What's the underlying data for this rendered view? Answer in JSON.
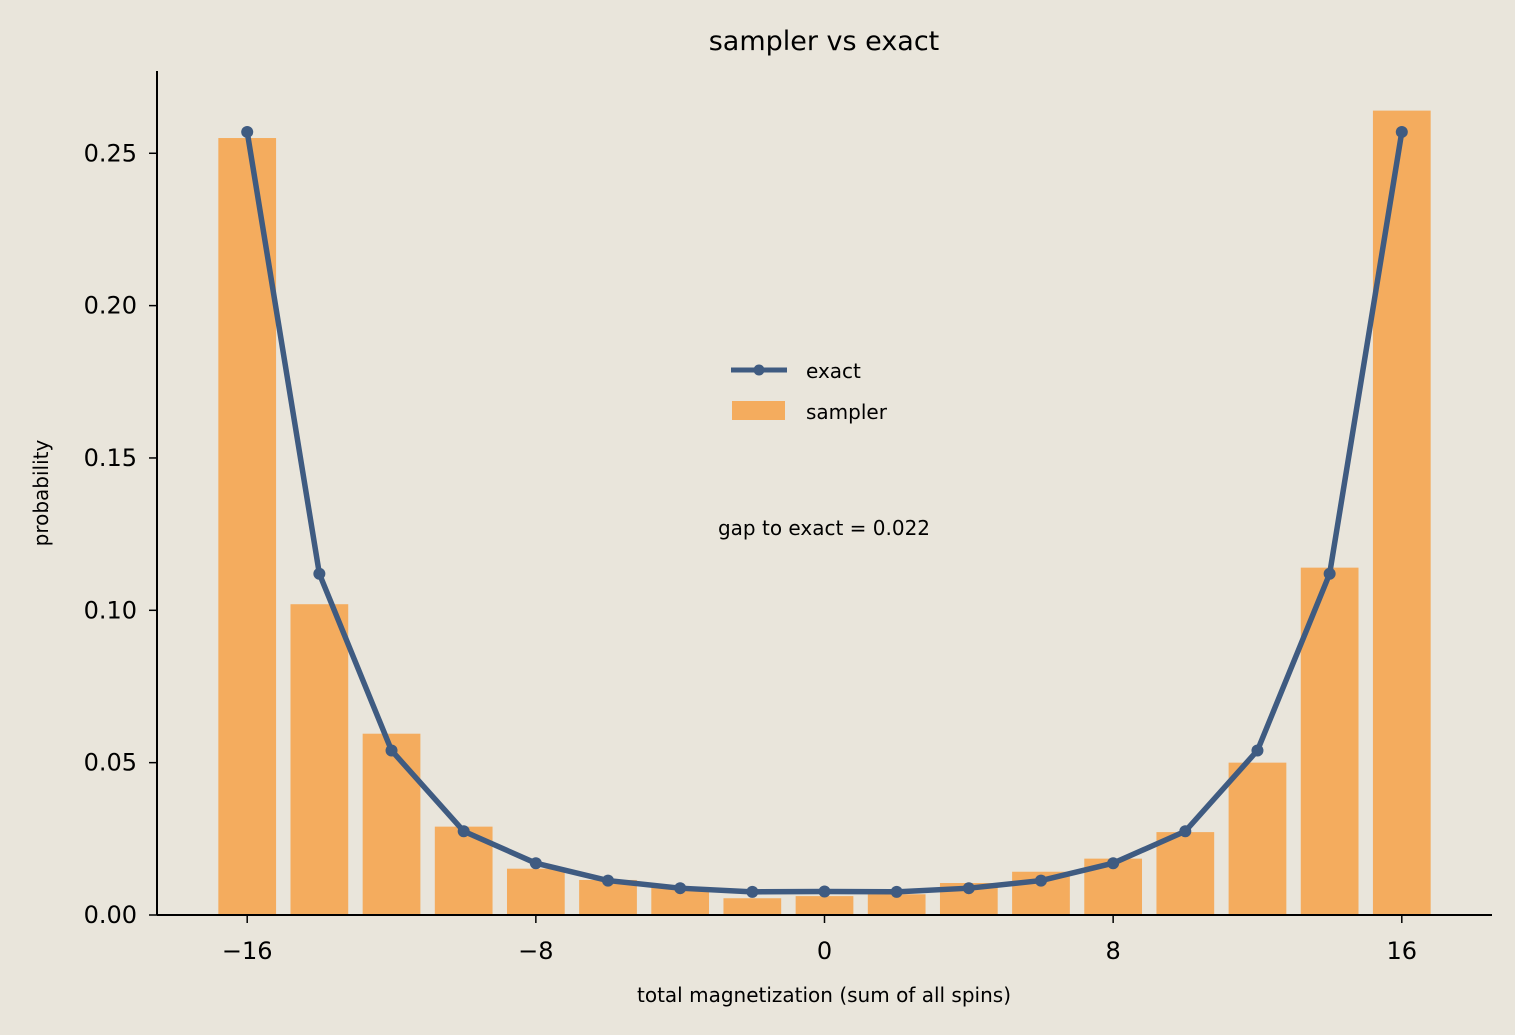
{
  "chart_data": {
    "type": "bar",
    "title": "sampler vs exact",
    "xlabel": "total magnetization  (sum of all spins)",
    "ylabel": "probability",
    "xlim": [
      -18.5,
      18.5
    ],
    "ylim": [
      0,
      0.277
    ],
    "xticks": [
      -16,
      -8,
      0,
      8,
      16
    ],
    "xtick_labels": [
      "−16",
      "−8",
      "0",
      "8",
      "16"
    ],
    "yticks": [
      0,
      0.05,
      0.1,
      0.15,
      0.2,
      0.25
    ],
    "ytick_labels": [
      "0.00",
      "0.05",
      "0.10",
      "0.15",
      "0.20",
      "0.25"
    ],
    "grid": false,
    "legend_position": "upper-center",
    "x": [
      -16,
      -14,
      -12,
      -10,
      -8,
      -6,
      -4,
      -2,
      0,
      2,
      4,
      6,
      8,
      10,
      12,
      14,
      16
    ],
    "series": [
      {
        "name": "sampler",
        "type": "bar",
        "color": "#f4ac5e",
        "values": [
          0.255,
          0.102,
          0.0595,
          0.029,
          0.0152,
          0.0115,
          0.0092,
          0.0055,
          0.0062,
          0.0068,
          0.0105,
          0.0142,
          0.0185,
          0.0272,
          0.05,
          0.114,
          0.264
        ]
      },
      {
        "name": "exact",
        "type": "line",
        "color": "#3f5b81",
        "values": [
          0.257,
          0.112,
          0.054,
          0.0275,
          0.017,
          0.0113,
          0.0088,
          0.0076,
          0.0077,
          0.0076,
          0.0088,
          0.0113,
          0.017,
          0.0275,
          0.054,
          0.112,
          0.257
        ]
      }
    ],
    "annotation": "gap to exact = 0.022",
    "colors": {
      "background": "#e9e5db",
      "bar": "#f4ac5e",
      "line": "#3f5b81"
    }
  }
}
